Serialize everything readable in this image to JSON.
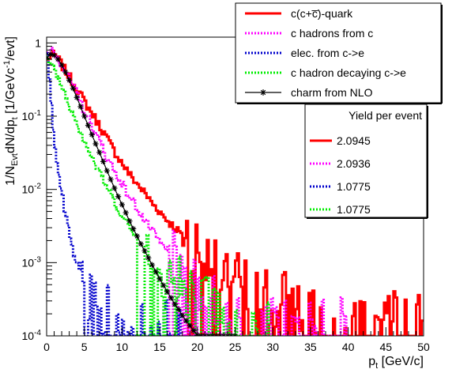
{
  "chart_data": {
    "type": "line",
    "xlabel": "p_{t} [GeV/c]",
    "ylabel": "1/N_{Evt}dN/dp_{t} [1/GeVc^{-1}/evt]",
    "x_range": [
      0,
      50
    ],
    "y_range": [
      0.0001,
      1.2
    ],
    "y_scale": "log",
    "x_ticks": [
      0,
      5,
      10,
      15,
      20,
      25,
      30,
      35,
      40,
      45,
      50
    ],
    "y_ticks": [
      {
        "value": 0.0001,
        "base": "10",
        "exp": "-4"
      },
      {
        "value": 0.001,
        "base": "10",
        "exp": "-3"
      },
      {
        "value": 0.01,
        "base": "10",
        "exp": "-2"
      },
      {
        "value": 0.1,
        "base": "10",
        "exp": "-1"
      },
      {
        "value": 1,
        "base": "1",
        "exp": ""
      }
    ],
    "legend": [
      {
        "label": "c(c+c̅)-quark",
        "color": "#ff0000",
        "style": "solid"
      },
      {
        "label": "c hadrons from c",
        "color": "#ff00ff",
        "style": "dotted"
      },
      {
        "label": "elec. from c->e",
        "color": "#0000cc",
        "style": "dotted"
      },
      {
        "label": "c hadron decaying c->e",
        "color": "#00ee00",
        "style": "dotted"
      },
      {
        "label": "charm from NLO",
        "color": "#000000",
        "style": "star"
      }
    ],
    "yield_box": {
      "title": "Yield per event",
      "entries": [
        {
          "value": "2.0945",
          "color": "#ff0000",
          "style": "solid"
        },
        {
          "value": "2.0936",
          "color": "#ff00ff",
          "style": "dotted"
        },
        {
          "value": "1.0775",
          "color": "#0000cc",
          "style": "dotted"
        },
        {
          "value": "1.0775",
          "color": "#00ee00",
          "style": "dotted"
        }
      ]
    },
    "series": [
      {
        "name": "c(c+c̅)-quark",
        "color": "#ff0000",
        "style": "hist-solid",
        "noise_from": 18,
        "x": [
          0,
          0.5,
          1,
          1.5,
          2,
          3,
          4,
          5,
          6,
          7,
          8,
          9,
          10,
          11,
          12,
          13,
          14,
          15,
          16,
          17,
          18,
          19,
          20,
          21,
          22,
          23,
          24,
          25,
          26,
          28,
          30,
          33,
          36,
          40,
          45,
          50
        ],
        "y": [
          0.55,
          0.68,
          0.68,
          0.62,
          0.5,
          0.35,
          0.24,
          0.16,
          0.11,
          0.075,
          0.05,
          0.033,
          0.023,
          0.016,
          0.012,
          0.009,
          0.0065,
          0.005,
          0.0038,
          0.003,
          0.0024,
          0.0019,
          0.0015,
          0.0012,
          0.001,
          0.0008,
          0.00065,
          0.0005,
          0.0004,
          0.0003,
          0.00025,
          0.0002,
          0.00017,
          0.00015,
          0.00013,
          0.00012
        ]
      },
      {
        "name": "c hadrons from c",
        "color": "#ff00ff",
        "style": "hist-dotted",
        "noise_from": 16,
        "x": [
          0,
          0.5,
          1,
          1.5,
          2,
          3,
          4,
          5,
          6,
          7,
          8,
          9,
          10,
          11,
          12,
          13,
          14,
          15,
          16,
          17,
          18,
          19,
          20,
          21,
          22,
          23,
          24,
          25,
          27,
          30,
          35,
          40
        ],
        "y": [
          0.7,
          0.85,
          0.78,
          0.65,
          0.5,
          0.32,
          0.2,
          0.12,
          0.075,
          0.045,
          0.028,
          0.018,
          0.012,
          0.008,
          0.0055,
          0.0038,
          0.0027,
          0.0019,
          0.0014,
          0.001,
          0.00075,
          0.00055,
          0.00042,
          0.00032,
          0.00025,
          0.0002,
          0.00016,
          0.00013,
          0.00011,
          0.0001,
          0.0001,
          0.0001
        ]
      },
      {
        "name": "elec. from c->e",
        "color": "#0000cc",
        "style": "hist-dotted",
        "noise_from": 4.5,
        "x": [
          0,
          0.25,
          0.5,
          0.75,
          1,
          1.5,
          2,
          2.5,
          3,
          3.5,
          4,
          4.5,
          5,
          6,
          7,
          8,
          9,
          10,
          11,
          12,
          13,
          14,
          15,
          16,
          17,
          18
        ],
        "y": [
          1.05,
          0.45,
          0.2,
          0.1,
          0.055,
          0.02,
          0.009,
          0.0045,
          0.0025,
          0.0015,
          0.00095,
          0.0007,
          0.0005,
          0.0003,
          0.00022,
          0.00017,
          0.00014,
          0.00012,
          0.00011,
          0.0001,
          0.0001,
          0.0001,
          0.0001,
          0.0001,
          0.0001,
          0.0001
        ]
      },
      {
        "name": "c hadron decaying c->e",
        "color": "#00ee00",
        "style": "hist-dotted",
        "noise_from": 12,
        "x": [
          0,
          0.5,
          1,
          1.5,
          2,
          3,
          4,
          5,
          6,
          7,
          8,
          9,
          10,
          11,
          12,
          13,
          14,
          15,
          16,
          17,
          18,
          19,
          20,
          22,
          25,
          28,
          30
        ],
        "y": [
          0.6,
          0.55,
          0.45,
          0.35,
          0.26,
          0.15,
          0.085,
          0.048,
          0.028,
          0.017,
          0.0105,
          0.0068,
          0.0045,
          0.003,
          0.0021,
          0.0015,
          0.0011,
          0.00082,
          0.00062,
          0.00048,
          0.00038,
          0.0003,
          0.00025,
          0.00018,
          0.00012,
          0.0001,
          0.0001
        ]
      },
      {
        "name": "charm from NLO",
        "color": "#000000",
        "style": "star",
        "x": [
          0,
          0.5,
          1,
          1.5,
          2,
          2.5,
          3,
          3.5,
          4,
          4.5,
          5,
          5.5,
          6,
          6.5,
          7,
          7.5,
          8,
          8.5,
          9,
          9.5,
          10,
          10.5,
          11,
          11.5,
          12,
          12.5,
          13,
          13.5,
          14,
          14.5,
          15,
          15.5,
          16,
          16.5,
          17,
          17.5,
          18,
          18.5,
          19,
          19.5,
          20,
          20.5,
          21,
          21.5,
          22,
          22.5,
          23,
          23.5,
          24,
          24.5,
          25
        ],
        "y": [
          0.62,
          0.7,
          0.68,
          0.6,
          0.5,
          0.4,
          0.31,
          0.24,
          0.18,
          0.135,
          0.1,
          0.075,
          0.056,
          0.042,
          0.032,
          0.024,
          0.018,
          0.0137,
          0.0104,
          0.008,
          0.0062,
          0.0048,
          0.0037,
          0.0029,
          0.0023,
          0.0018,
          0.00145,
          0.00116,
          0.00093,
          0.00075,
          0.0006,
          0.00049,
          0.0004,
          0.00033,
          0.00027,
          0.00023,
          0.00019,
          0.00016,
          0.000138,
          0.000118,
          0.000102,
          0.0001,
          0.0001,
          0.0001,
          0.0001,
          0.0001,
          0.0001,
          0.0001,
          0.0001,
          0.0001,
          0.0001
        ]
      }
    ]
  }
}
